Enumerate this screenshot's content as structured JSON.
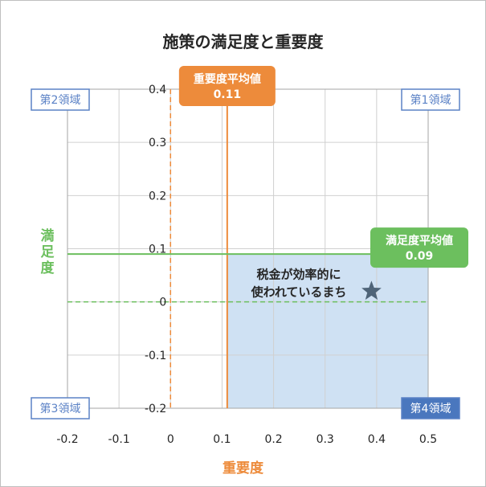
{
  "chart_data": {
    "type": "scatter",
    "title": "施策の満足度と重要度",
    "xlabel": "重要度",
    "ylabel": "満足度",
    "xlim": [
      -0.2,
      0.5
    ],
    "ylim": [
      -0.2,
      0.4
    ],
    "x_ticks": [
      "-0.2",
      "-0.1",
      "0",
      "0.1",
      "0.2",
      "0.3",
      "0.4",
      "0.5"
    ],
    "y_ticks": [
      "0.4",
      "0.3",
      "0.2",
      "0.1",
      "0",
      "-0.1",
      "-0.2"
    ],
    "grid": true,
    "points": [
      {
        "label": "税金が効率的に使われているまち",
        "x": 0.39,
        "y": 0.02,
        "marker": "star"
      }
    ],
    "reference_lines": {
      "importance_avg": {
        "label": "重要度平均値",
        "value": 0.11,
        "value_label": "0.11"
      },
      "satisfaction_avg": {
        "label": "満足度平均値",
        "value": 0.09,
        "value_label": "0.09"
      }
    },
    "quadrants": {
      "q1": "第1領域",
      "q2": "第2領域",
      "q3": "第3領域",
      "q4": "第4領域"
    },
    "highlight_quadrant": "q4"
  },
  "colors": {
    "orange": "#ed8b3b",
    "green": "#6cbf5e",
    "blue_border": "#5b82c6",
    "blue_fill": "#cfe1f3",
    "q4_fill": "#4a77be",
    "star": "#4f6478",
    "grid": "#d0d0d0",
    "axis_text": "#262626"
  }
}
